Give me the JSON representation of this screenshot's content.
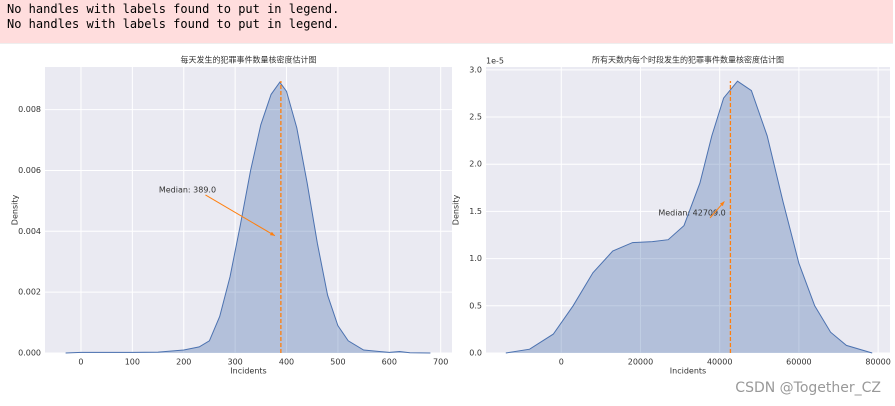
{
  "warnings": [
    "No handles with labels found to put in legend.",
    "No handles with labels found to put in legend."
  ],
  "watermark": "CSDN @Together_CZ",
  "chart_data": [
    {
      "type": "area",
      "title": "每天发生的犯罪事件数量核密度估计图",
      "xlabel": "Incidents",
      "ylabel": "Density",
      "x": [
        -30,
        0,
        100,
        150,
        200,
        230,
        250,
        270,
        290,
        310,
        330,
        350,
        370,
        387,
        400,
        420,
        440,
        460,
        480,
        500,
        520,
        550,
        600,
        620,
        640,
        680
      ],
      "values": [
        0,
        2e-05,
        2e-05,
        3e-05,
        0.0001,
        0.0002,
        0.0004,
        0.0012,
        0.0025,
        0.0042,
        0.006,
        0.0075,
        0.0085,
        0.0089,
        0.0086,
        0.0074,
        0.0056,
        0.0036,
        0.0019,
        0.0009,
        0.0004,
        0.0001,
        2e-05,
        5e-05,
        1e-05,
        0
      ],
      "color": "#4c72b0",
      "median": 389.0,
      "median_label": "Median: 389.0",
      "median_color": "#ff7f0e",
      "xlim": [
        -70,
        722
      ],
      "ylim": [
        0,
        0.0094
      ],
      "xticks": [
        0,
        100,
        200,
        300,
        400,
        500,
        600,
        700
      ],
      "yticks": [
        {
          "value": 0,
          "label": "0.000"
        },
        {
          "value": 0.002,
          "label": "0.002"
        },
        {
          "value": 0.004,
          "label": "0.004"
        },
        {
          "value": 0.006,
          "label": "0.006"
        },
        {
          "value": 0.008,
          "label": "0.008"
        }
      ],
      "grid": true
    },
    {
      "type": "area",
      "title": "所有天数内每个时段发生的犯罪事件数量核密度估计图",
      "xlabel": "Incidents",
      "ylabel": "Density",
      "y_offset_label": "1e-5",
      "x": [
        -14000,
        -8000,
        -2000,
        3000,
        8000,
        13000,
        18000,
        23000,
        27000,
        31000,
        35000,
        38000,
        41000,
        44500,
        48000,
        52000,
        56000,
        60000,
        64000,
        68000,
        72000,
        78500
      ],
      "values": [
        0,
        0.04,
        0.2,
        0.5,
        0.85,
        1.08,
        1.17,
        1.18,
        1.2,
        1.35,
        1.8,
        2.3,
        2.7,
        2.88,
        2.78,
        2.3,
        1.6,
        0.95,
        0.5,
        0.22,
        0.08,
        0
      ],
      "color": "#4c72b0",
      "median": 42709.0,
      "median_label": "Median: 42709.0",
      "median_color": "#ff7f0e",
      "xlim": [
        -19000,
        83000
      ],
      "ylim": [
        0,
        3.03
      ],
      "xticks": [
        0,
        20000,
        40000,
        60000,
        80000
      ],
      "yticks": [
        {
          "value": 0,
          "label": "0.0"
        },
        {
          "value": 0.5,
          "label": "0.5"
        },
        {
          "value": 1,
          "label": "1.0"
        },
        {
          "value": 1.5,
          "label": "1.5"
        },
        {
          "value": 2,
          "label": "2.0"
        },
        {
          "value": 2.5,
          "label": "2.5"
        },
        {
          "value": 3,
          "label": "3.0"
        }
      ],
      "grid": true
    }
  ]
}
